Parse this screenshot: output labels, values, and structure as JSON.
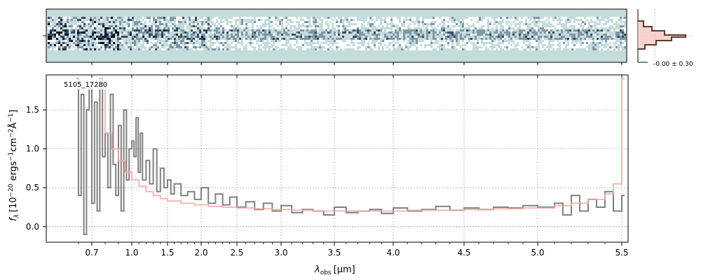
{
  "chart_data": {
    "type": "line",
    "object_label": "5105_17280",
    "xlabel_main": "λ",
    "xlabel_sub": "obs",
    "xlabel_unit": "[μm]",
    "ylabel": "f_λ [10^-20 ergs^-1 cm^-2 Å^-1]",
    "ylabel_parts": {
      "f": "f",
      "lambda_sub": "λ",
      "bracket_open": "[10",
      "exp_a": "−20",
      "ergs": " ergs",
      "exp_b": "−1",
      "cm": "cm",
      "exp_c": "−2",
      "angstrom": "Å",
      "exp_d": "−1",
      "bracket_close": "]"
    },
    "x_ticks": [
      "0.7",
      "1.0",
      "1.5",
      "2.0",
      "2.5",
      "3.0",
      "3.5",
      "4.0",
      "4.5",
      "5.0",
      "5.5"
    ],
    "x_tick_values": [
      0.7,
      1.0,
      1.5,
      2.0,
      2.5,
      3.0,
      3.5,
      4.0,
      4.5,
      5.0,
      5.5
    ],
    "y_ticks": [
      "0.0",
      "0.5",
      "1.0",
      "1.5"
    ],
    "y_tick_values": [
      0.0,
      0.5,
      1.0,
      1.5
    ],
    "xlim": [
      0.55,
      5.55
    ],
    "ylim": [
      -0.2,
      1.95
    ],
    "grid": true,
    "inset_annotation": "-0.00 ± 0.30",
    "series": [
      {
        "color": "#808080",
        "style": "steps",
        "x": [
          0.58,
          0.6,
          0.62,
          0.64,
          0.66,
          0.68,
          0.7,
          0.72,
          0.74,
          0.76,
          0.78,
          0.8,
          0.82,
          0.84,
          0.86,
          0.88,
          0.9,
          0.92,
          0.94,
          0.96,
          0.98,
          1.0,
          1.03,
          1.06,
          1.09,
          1.12,
          1.15,
          1.2,
          1.25,
          1.3,
          1.35,
          1.4,
          1.45,
          1.5,
          1.55,
          1.6,
          1.7,
          1.8,
          1.9,
          2.0,
          2.1,
          2.2,
          2.3,
          2.4,
          2.5,
          2.6,
          2.7,
          2.8,
          2.9,
          3.0,
          3.1,
          3.2,
          3.3,
          3.4,
          3.5,
          3.6,
          3.7,
          3.8,
          3.9,
          4.0,
          4.1,
          4.2,
          4.3,
          4.4,
          4.5,
          4.6,
          4.7,
          4.8,
          4.9,
          5.0,
          5.1,
          5.15,
          5.2,
          5.25,
          5.3,
          5.35,
          5.4,
          5.45,
          5.5
        ],
        "y": [
          1.9,
          0.4,
          1.7,
          -0.1,
          1.5,
          1.8,
          0.3,
          1.6,
          0.2,
          1.9,
          0.9,
          1.2,
          0.5,
          1.7,
          0.8,
          0.4,
          1.3,
          0.2,
          1.5,
          0.6,
          1.0,
          1.1,
          0.9,
          1.4,
          0.7,
          1.2,
          0.6,
          0.85,
          0.55,
          1.0,
          0.45,
          0.75,
          0.5,
          0.6,
          0.42,
          0.55,
          0.4,
          0.45,
          0.35,
          0.5,
          0.3,
          0.42,
          0.28,
          0.38,
          0.25,
          0.32,
          0.22,
          0.3,
          0.2,
          0.27,
          0.18,
          0.22,
          0.2,
          0.15,
          0.25,
          0.18,
          0.2,
          0.22,
          0.17,
          0.24,
          0.2,
          0.22,
          0.26,
          0.21,
          0.24,
          0.22,
          0.25,
          0.24,
          0.27,
          0.25,
          0.3,
          0.15,
          0.4,
          0.2,
          0.35,
          0.25,
          0.45,
          0.2,
          0.4
        ]
      },
      {
        "color": "#f4a6a6",
        "style": "model",
        "x": [
          0.75,
          0.8,
          0.85,
          0.9,
          0.95,
          1.0,
          1.1,
          1.2,
          1.3,
          1.4,
          1.5,
          1.7,
          1.9,
          2.1,
          2.3,
          2.5,
          2.7,
          2.9,
          3.1,
          3.3,
          3.5,
          3.7,
          3.9,
          4.1,
          4.3,
          4.5,
          4.7,
          4.9,
          5.1,
          5.2,
          5.3,
          5.4,
          5.45,
          5.5
        ],
        "y": [
          1.8,
          1.2,
          1.0,
          0.85,
          0.7,
          0.6,
          0.52,
          0.45,
          0.4,
          0.36,
          0.33,
          0.3,
          0.28,
          0.26,
          0.25,
          0.24,
          0.23,
          0.22,
          0.21,
          0.2,
          0.2,
          0.2,
          0.2,
          0.21,
          0.21,
          0.22,
          0.23,
          0.24,
          0.27,
          0.3,
          0.35,
          0.42,
          0.55,
          1.9
        ]
      }
    ]
  },
  "colors": {
    "spectrum": "#808080",
    "model": "#f4a6a6",
    "model_line": "#e97f7f",
    "panel_bg": "#c4dcdc",
    "hist_dark": "#5c3a35",
    "hist_fill": "#f4c9c0"
  }
}
